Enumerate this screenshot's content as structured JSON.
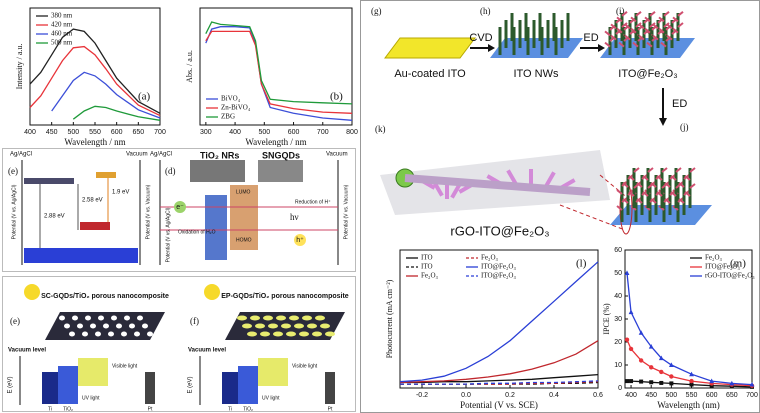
{
  "chart_data": [
    {
      "type": "line",
      "label": "(a)",
      "x_label": "Wavelength / nm",
      "y_label": "Intensity / a.u.",
      "legend": "top-left",
      "legend_columns": 1,
      "xlim": [
        400,
        700
      ],
      "ylim": [
        0,
        1
      ],
      "xticks": [
        400,
        450,
        500,
        550,
        600,
        650,
        700
      ],
      "yticks": [],
      "x": [
        400,
        425,
        450,
        475,
        500,
        525,
        550,
        575,
        600,
        650,
        700
      ],
      "series": [
        {
          "name": "380 nm",
          "color": "#222222",
          "values": [
            0.35,
            0.45,
            0.6,
            0.75,
            0.82,
            0.8,
            0.7,
            0.55,
            0.4,
            0.2,
            0.1
          ]
        },
        {
          "name": "420 nm",
          "color": "#e8343a",
          "values": [
            0.15,
            0.25,
            0.4,
            0.55,
            0.66,
            0.67,
            0.6,
            0.48,
            0.35,
            0.17,
            0.08
          ]
        },
        {
          "name": "460 nm",
          "color": "#3c4fd8",
          "values": [
            null,
            null,
            0.12,
            0.25,
            0.38,
            0.45,
            0.42,
            0.35,
            0.26,
            0.13,
            0.06
          ]
        },
        {
          "name": "500 nm",
          "color": "#1f9a3a",
          "values": [
            null,
            null,
            null,
            null,
            0.05,
            0.12,
            0.16,
            0.15,
            0.12,
            0.07,
            0.04
          ]
        }
      ]
    },
    {
      "type": "line",
      "label": "(b)",
      "x_label": "Wavelength / nm",
      "y_label": "Abs. / a.u.",
      "legend": "bottom-left",
      "legend_columns": 1,
      "xlim": [
        280,
        800
      ],
      "ylim": [
        0,
        1
      ],
      "xticks": [
        300,
        400,
        500,
        600,
        700,
        800
      ],
      "yticks": [],
      "x": [
        300,
        320,
        350,
        400,
        450,
        470,
        490,
        520,
        600,
        700,
        800
      ],
      "series": [
        {
          "name": "BiVO₄",
          "color": "#3c4fd8",
          "values": [
            0.7,
            0.82,
            0.84,
            0.84,
            0.83,
            0.7,
            0.35,
            0.15,
            0.1,
            0.06,
            0.04
          ]
        },
        {
          "name": "Zn-BiVO₄",
          "color": "#e8343a",
          "values": [
            0.72,
            0.8,
            0.8,
            0.8,
            0.8,
            0.68,
            0.35,
            0.18,
            0.14,
            0.11,
            0.1
          ]
        },
        {
          "name": "ZBG",
          "color": "#1f9a3a",
          "values": [
            0.78,
            0.88,
            0.86,
            0.85,
            0.84,
            0.72,
            0.38,
            0.22,
            0.2,
            0.19,
            0.18
          ]
        }
      ]
    },
    {
      "type": "line",
      "label": "(l)",
      "x_label": "Potential (V vs. SCE)",
      "y_label": "Photocurrent (mA cm⁻²)",
      "legend": "top-left",
      "legend_columns": 2,
      "xlim": [
        -0.3,
        0.6
      ],
      "ylim": [
        -0.05,
        1.7
      ],
      "xticks": [
        -0.2,
        {
          "value": 0,
          "label": "0.0"
        },
        0.2,
        0.4,
        0.6
      ],
      "yticks": [],
      "x": [
        -0.3,
        -0.2,
        -0.1,
        0,
        0.1,
        0.2,
        0.3,
        0.4,
        0.5,
        0.6
      ],
      "series": [
        {
          "name": "ITO",
          "color": "#111111",
          "dash": false,
          "values": [
            0.02,
            0.02,
            0.03,
            0.03,
            0.04,
            0.05,
            0.06,
            0.08,
            0.1,
            0.12
          ]
        },
        {
          "name": "ITO",
          "color": "#111111",
          "dash": true,
          "values": [
            0,
            0,
            0,
            0,
            0,
            0,
            0,
            0.01,
            0.01,
            0.02
          ]
        },
        {
          "name": "Fe₂O₃",
          "color": "#c0272d",
          "dash": false,
          "values": [
            0.02,
            0.03,
            0.04,
            0.06,
            0.09,
            0.13,
            0.19,
            0.27,
            0.38,
            0.55
          ]
        },
        {
          "name": "Fe₂O₃",
          "color": "#c0272d",
          "dash": true,
          "values": [
            0,
            0,
            0,
            0,
            0,
            0,
            0.01,
            0.01,
            0.02,
            0.03
          ]
        },
        {
          "name": "ITO@Fe₂O₃",
          "color": "#2a3fd6",
          "dash": false,
          "values": [
            0.03,
            0.05,
            0.1,
            0.2,
            0.35,
            0.55,
            0.8,
            1.05,
            1.3,
            1.55
          ]
        },
        {
          "name": "ITO@Fe₂O₃",
          "color": "#2a3fd6",
          "dash": true,
          "values": [
            0,
            0,
            0,
            0,
            0.01,
            0.01,
            0.02,
            0.02,
            0.03,
            0.04
          ]
        }
      ]
    },
    {
      "type": "line",
      "label": "(m)",
      "x_label": "Wavelength (nm)",
      "y_label": "IPCE (%)",
      "legend": "top-right",
      "legend_columns": 1,
      "xlim": [
        385,
        700
      ],
      "ylim": [
        0,
        60
      ],
      "xticks": [
        400,
        450,
        500,
        550,
        600,
        650,
        700
      ],
      "yticks": [
        0,
        10,
        20,
        30,
        40,
        50,
        60
      ],
      "x": [
        390,
        400,
        425,
        450,
        475,
        500,
        550,
        600,
        650,
        700
      ],
      "series": [
        {
          "name": "Fe₂O₃",
          "color": "#111111",
          "marker": "square",
          "values": [
            3,
            3,
            2.8,
            2.5,
            2.2,
            2,
            1.5,
            1,
            0.8,
            0.5
          ]
        },
        {
          "name": "ITO@Fe₂O₃",
          "color": "#e8343a",
          "marker": "circle",
          "values": [
            21,
            17,
            12,
            9,
            7,
            5,
            3,
            2,
            1.5,
            1
          ]
        },
        {
          "name": "rGO-ITO@Fe₂O₃",
          "color": "#2a3fd6",
          "marker": "triangle",
          "values": [
            50,
            33,
            24,
            18,
            13,
            10,
            6,
            3,
            2,
            1.5
          ]
        }
      ]
    }
  ],
  "synthesis": {
    "panels": [
      "(g)",
      "(h)",
      "(i)",
      "(j)",
      "(k)"
    ],
    "steps": [
      "Au-coated ITO",
      "ITO NWs",
      "ITO@Fe₂O₃",
      "rGO-ITO@Fe₂O₃"
    ],
    "arrows": [
      "CVD",
      "ED",
      "ED"
    ]
  },
  "energy": {
    "panels": [
      "(e)",
      "(d)"
    ],
    "axes": [
      "Ag/AgCl",
      "Vacuum",
      "Ag/AgCl",
      "Vacuum"
    ],
    "y_labels": [
      "Potential (V vs. Ag/AgCl)",
      "Potential (V vs. Vacuum)"
    ],
    "gaps": [
      "2.88 eV",
      "2.58 eV",
      "1.9 eV"
    ],
    "materials": [
      "TiO₂ NRs",
      "SNGQDs"
    ],
    "levels": [
      "LUMO",
      "HOMO"
    ],
    "reactions": [
      "Oxidation of H₂O",
      "Reduction of H⁺"
    ],
    "carriers": [
      "e⁻",
      "h⁺"
    ],
    "light": "hν"
  },
  "composites": {
    "panels": [
      "(e)",
      "(f)"
    ],
    "titles": [
      "SC-GQDs/TiO₂ porous nanocomposite",
      "EP-GQDs/TiO₂ porous nanocomposite"
    ],
    "vacuum": "Vacuum level",
    "axis": "E (eV)",
    "electrodes": [
      "Ti",
      "TiO₂",
      "Pt"
    ],
    "light": [
      "UV light",
      "Visible light"
    ]
  }
}
